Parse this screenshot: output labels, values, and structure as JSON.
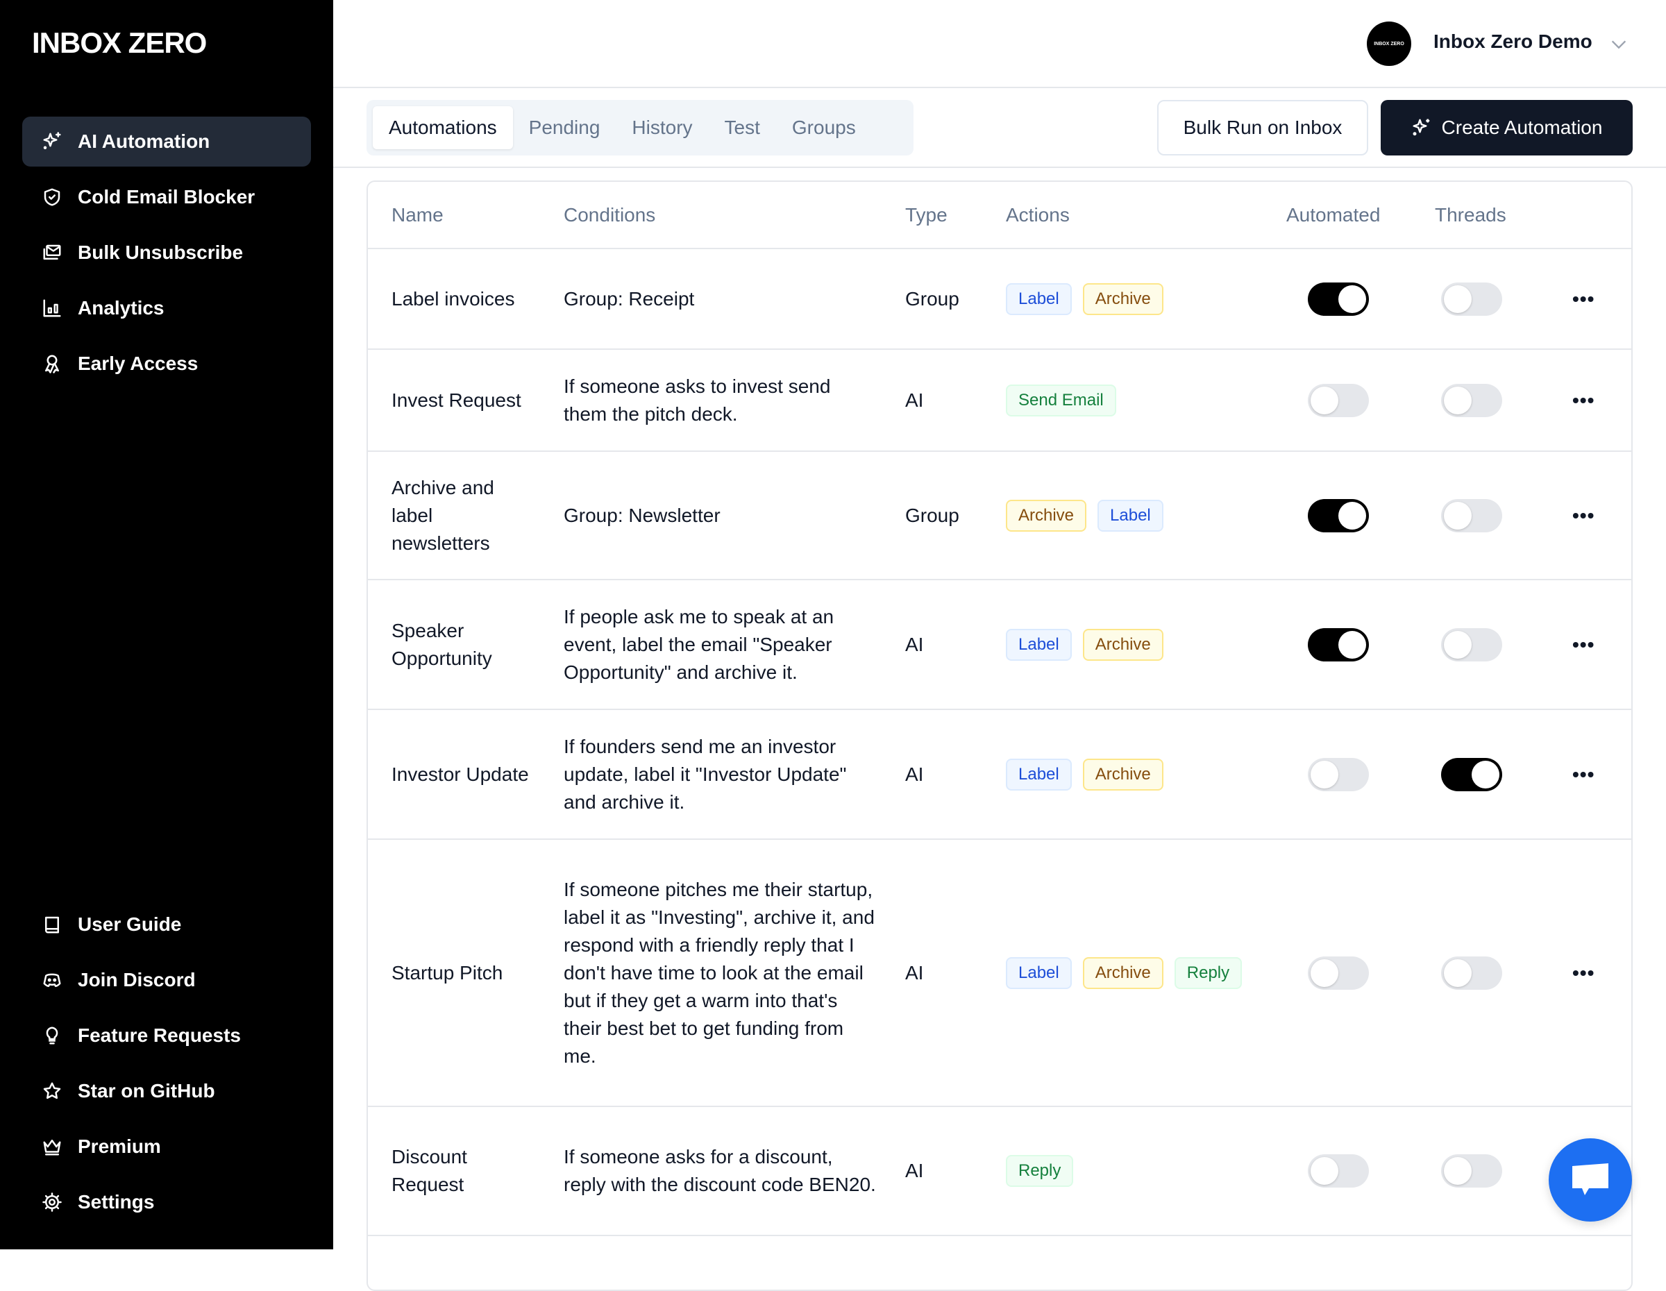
{
  "sidebar": {
    "logo": "INBOX ZERO",
    "top_items": [
      {
        "label": "AI Automation",
        "icon": "sparkles-icon",
        "active": true
      },
      {
        "label": "Cold Email Blocker",
        "icon": "shield-check-icon"
      },
      {
        "label": "Bulk Unsubscribe",
        "icon": "mails-icon"
      },
      {
        "label": "Analytics",
        "icon": "bar-chart-icon"
      },
      {
        "label": "Early Access",
        "icon": "ribbon-icon"
      }
    ],
    "bottom_items": [
      {
        "label": "User Guide",
        "icon": "book-icon"
      },
      {
        "label": "Join Discord",
        "icon": "discord-icon"
      },
      {
        "label": "Feature Requests",
        "icon": "lightbulb-icon"
      },
      {
        "label": "Star on GitHub",
        "icon": "star-icon"
      },
      {
        "label": "Premium",
        "icon": "crown-icon"
      },
      {
        "label": "Settings",
        "icon": "gear-icon"
      }
    ]
  },
  "header": {
    "avatar_text": "INBOX ZERO",
    "user_name": "Inbox Zero Demo"
  },
  "tabs": [
    "Automations",
    "Pending",
    "History",
    "Test",
    "Groups"
  ],
  "active_tab": "Automations",
  "buttons": {
    "bulk_run": "Bulk Run on Inbox",
    "create": "Create Automation"
  },
  "table": {
    "columns": [
      "Name",
      "Conditions",
      "Type",
      "Actions",
      "Automated",
      "Threads"
    ],
    "rows": [
      {
        "name": "Label invoices",
        "conditions": "Group: Receipt",
        "type": "Group",
        "actions": [
          "Label",
          "Archive"
        ],
        "automated": true,
        "threads": false
      },
      {
        "name": "Invest Request",
        "conditions": "If someone asks to invest send them the pitch deck.",
        "type": "AI",
        "actions": [
          "Send Email"
        ],
        "automated": false,
        "threads": false
      },
      {
        "name": "Archive and label newsletters",
        "conditions": "Group: Newsletter",
        "type": "Group",
        "actions": [
          "Archive",
          "Label"
        ],
        "automated": true,
        "threads": false
      },
      {
        "name": "Speaker Opportunity",
        "conditions": "If people ask me to speak at an event, label the email \"Speaker Opportunity\" and archive it.",
        "type": "AI",
        "actions": [
          "Label",
          "Archive"
        ],
        "automated": true,
        "threads": false
      },
      {
        "name": "Investor Update",
        "conditions": "If founders send me an investor update, label it \"Investor Update\" and archive it.",
        "type": "AI",
        "actions": [
          "Label",
          "Archive"
        ],
        "automated": false,
        "threads": true
      },
      {
        "name": "Startup Pitch",
        "conditions": "If someone pitches me their startup, label it as \"Investing\", archive it, and respond with a friendly reply that I don't have time to look at the email but if they get a warm into that's their best bet to get funding from me.",
        "type": "AI",
        "actions": [
          "Label",
          "Archive",
          "Reply"
        ],
        "automated": false,
        "threads": false
      },
      {
        "name": "Discount Request",
        "conditions": "If someone asks for a discount, reply with the discount code BEN20.",
        "type": "AI",
        "actions": [
          "Reply"
        ],
        "automated": false,
        "threads": false
      }
    ]
  },
  "colors": {
    "sidebar_bg": "#000000",
    "active_nav": "#232b38",
    "primary_button": "#111827",
    "chat_button": "#1d6ff2"
  }
}
